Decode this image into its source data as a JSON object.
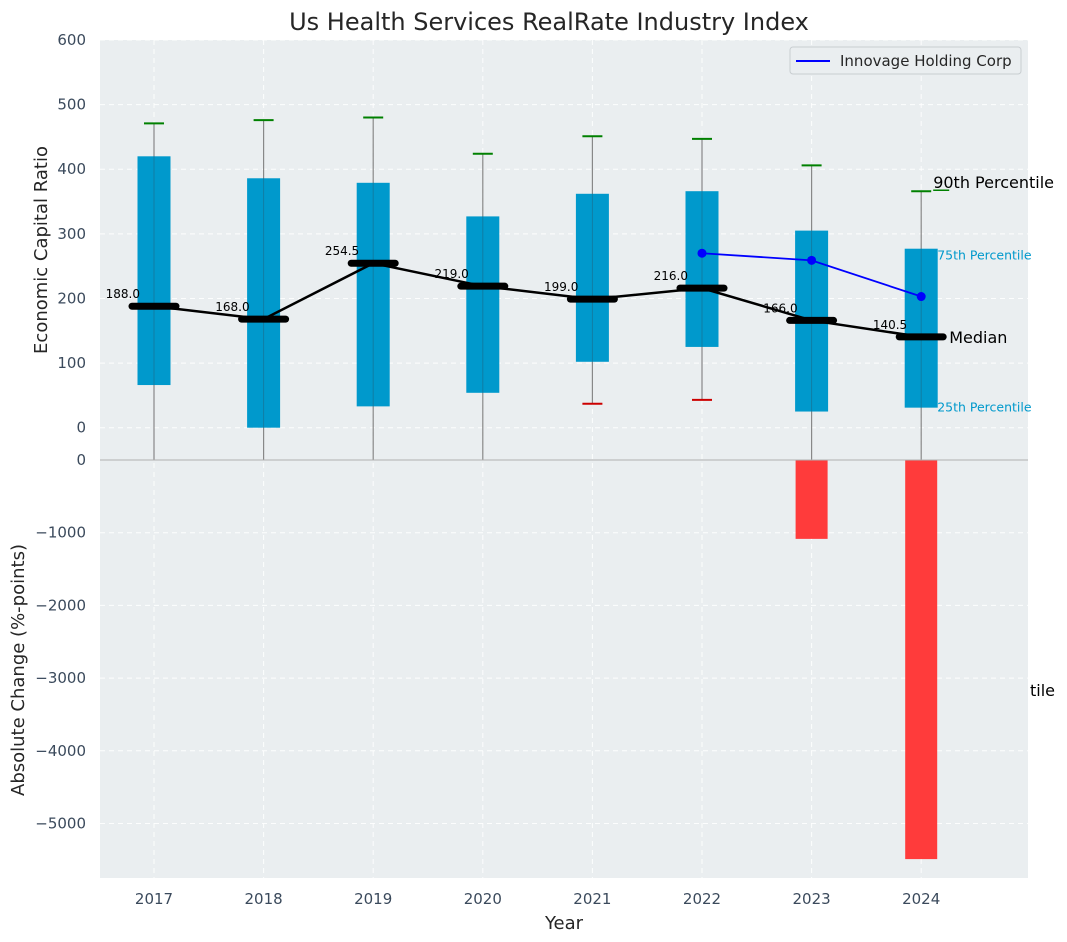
{
  "chart_data": {
    "type": "box",
    "title": "Us Health Services RealRate Industry Index",
    "xlabel": "Year",
    "categories": [
      "2017",
      "2018",
      "2019",
      "2020",
      "2021",
      "2022",
      "2023",
      "2024"
    ],
    "top_panel": {
      "ylabel": "Economic Capital Ratio",
      "ylim": [
        -50,
        600
      ],
      "yticks": [
        0,
        100,
        200,
        300,
        400,
        500,
        600
      ],
      "grid": true,
      "percentile_90": [
        471,
        476,
        480,
        424,
        451,
        447,
        406,
        366
      ],
      "percentile_75": [
        420,
        386,
        379,
        327,
        362,
        366,
        305,
        277
      ],
      "median": [
        188.0,
        168.0,
        254.5,
        219.0,
        199.0,
        216.0,
        166.0,
        140.5
      ],
      "median_labels": [
        "188.0",
        "168.0",
        "254.5",
        "219.0",
        "199.0",
        "216.0",
        "166.0",
        "140.5"
      ],
      "percentile_25": [
        66,
        0,
        33,
        54,
        102,
        125,
        25,
        31
      ],
      "percentile_10": [
        null,
        null,
        null,
        null,
        37,
        43,
        null,
        null
      ],
      "whisker_low": [
        -50,
        -50,
        -50,
        -50,
        37,
        43,
        -50,
        -50
      ],
      "series": [
        {
          "name": "Innovage Holding Corp",
          "x": [
            "2022",
            "2023",
            "2024"
          ],
          "values": [
            270,
            259,
            203
          ],
          "color": "#0000ff"
        }
      ],
      "annotations": {
        "p90": "90th Percentile",
        "p75": "75th Percentile",
        "median": "Median",
        "p25": "25th Percentile"
      },
      "legend_placement": "top-right"
    },
    "bottom_panel": {
      "ylabel": "Absolute Change (%-points)",
      "ylim": [
        -5750,
        0
      ],
      "yticks": [
        0,
        -1000,
        -2000,
        -3000,
        -4000,
        -5000
      ],
      "ytick_labels": [
        "0",
        "−1000",
        "−2000",
        "−3000",
        "−4000",
        "−5000"
      ],
      "grid": true,
      "bars": [
        {
          "x": "2023",
          "value": -1085
        },
        {
          "x": "2024",
          "value": -5490
        }
      ],
      "annotations": {
        "clipped_percentile_label": "tile"
      }
    },
    "colors": {
      "box": "#0099cc",
      "median": "#000000",
      "whisker_cap_high": "#008000",
      "whisker_cap_low": "#cc0000",
      "whisker": "#888888",
      "negative_bar": "#ff3b3b",
      "panel_bg": "#eaeef0",
      "p75_label": "#0099cc"
    }
  }
}
